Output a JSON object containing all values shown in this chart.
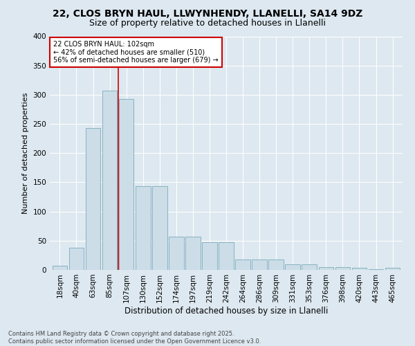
{
  "title": "22, CLOS BRYN HAUL, LLWYNHENDY, LLANELLI, SA14 9DZ",
  "subtitle": "Size of property relative to detached houses in Llanelli",
  "xlabel": "Distribution of detached houses by size in Llanelli",
  "ylabel": "Number of detached properties",
  "footer": "Contains HM Land Registry data © Crown copyright and database right 2025.\nContains public sector information licensed under the Open Government Licence v3.0.",
  "bins": [
    "18sqm",
    "40sqm",
    "63sqm",
    "85sqm",
    "107sqm",
    "130sqm",
    "152sqm",
    "174sqm",
    "197sqm",
    "219sqm",
    "242sqm",
    "264sqm",
    "286sqm",
    "309sqm",
    "331sqm",
    "353sqm",
    "376sqm",
    "398sqm",
    "420sqm",
    "443sqm",
    "465sqm"
  ],
  "values": [
    7,
    38,
    243,
    307,
    293,
    143,
    143,
    57,
    57,
    47,
    47,
    18,
    18,
    18,
    10,
    10,
    5,
    5,
    3,
    1,
    4
  ],
  "bar_color": "#ccdde8",
  "bar_edge_color": "#7aaabb",
  "vline_color": "#cc0000",
  "vline_index": 3.5,
  "annotation_text": "22 CLOS BRYN HAUL: 102sqm\n← 42% of detached houses are smaller (510)\n56% of semi-detached houses are larger (679) →",
  "annotation_box_color": "#ffffff",
  "annotation_box_edge": "#cc0000",
  "ylim": [
    0,
    400
  ],
  "yticks": [
    0,
    50,
    100,
    150,
    200,
    250,
    300,
    350,
    400
  ],
  "background_color": "#dde8f0",
  "grid_color": "#ffffff",
  "title_fontsize": 10,
  "subtitle_fontsize": 9
}
